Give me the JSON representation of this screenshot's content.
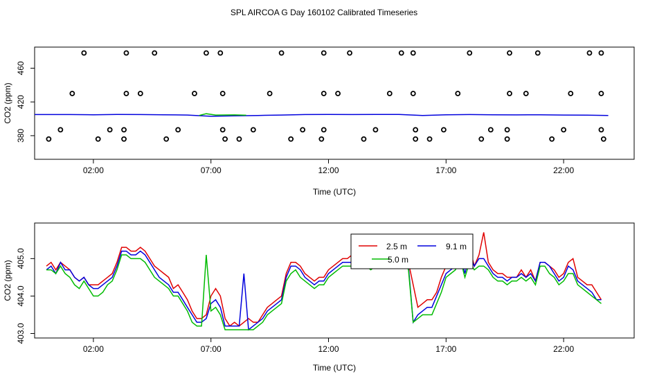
{
  "title": "SPL AIRCOA G  Day 160102  Calibrated Timeseries",
  "colors": {
    "series_2_5": "#e00000",
    "series_9_1": "#0000dd",
    "series_5_0": "#00bb00",
    "markers": "#000000"
  },
  "chart_data": [
    {
      "type": "scatter",
      "xlabel": "Time (UTC)",
      "ylabel": "CO2 (ppm)",
      "xlim": [
        -0.5,
        25.0
      ],
      "ylim": [
        352,
        485
      ],
      "x_ticks": [
        {
          "v": 2,
          "label": "02:00"
        },
        {
          "v": 7,
          "label": "07:00"
        },
        {
          "v": 12,
          "label": "12:00"
        },
        {
          "v": 17,
          "label": "17:00"
        },
        {
          "v": 22,
          "label": "22:00"
        }
      ],
      "y_ticks": [
        {
          "v": 380,
          "label": "380"
        },
        {
          "v": 420,
          "label": "420"
        },
        {
          "v": 460,
          "label": "460"
        }
      ],
      "markers": [
        {
          "x": 1.6,
          "y": 478
        },
        {
          "x": 3.4,
          "y": 478
        },
        {
          "x": 4.6,
          "y": 478
        },
        {
          "x": 6.8,
          "y": 478
        },
        {
          "x": 7.4,
          "y": 478
        },
        {
          "x": 10.0,
          "y": 478
        },
        {
          "x": 11.8,
          "y": 478
        },
        {
          "x": 12.9,
          "y": 478
        },
        {
          "x": 15.1,
          "y": 478
        },
        {
          "x": 15.6,
          "y": 478
        },
        {
          "x": 18.0,
          "y": 478
        },
        {
          "x": 19.7,
          "y": 478
        },
        {
          "x": 20.9,
          "y": 478
        },
        {
          "x": 23.1,
          "y": 478
        },
        {
          "x": 23.6,
          "y": 478
        },
        {
          "x": 1.1,
          "y": 430
        },
        {
          "x": 3.4,
          "y": 430
        },
        {
          "x": 4.0,
          "y": 430
        },
        {
          "x": 6.3,
          "y": 430
        },
        {
          "x": 7.5,
          "y": 430
        },
        {
          "x": 9.5,
          "y": 430
        },
        {
          "x": 11.8,
          "y": 430
        },
        {
          "x": 12.4,
          "y": 430
        },
        {
          "x": 14.6,
          "y": 430
        },
        {
          "x": 15.6,
          "y": 430
        },
        {
          "x": 17.5,
          "y": 430
        },
        {
          "x": 19.7,
          "y": 430
        },
        {
          "x": 20.4,
          "y": 430
        },
        {
          "x": 22.3,
          "y": 430
        },
        {
          "x": 23.6,
          "y": 430
        },
        {
          "x": 0.6,
          "y": 387
        },
        {
          "x": 2.7,
          "y": 387
        },
        {
          "x": 3.3,
          "y": 387
        },
        {
          "x": 5.6,
          "y": 387
        },
        {
          "x": 7.5,
          "y": 387
        },
        {
          "x": 8.8,
          "y": 387
        },
        {
          "x": 10.9,
          "y": 387
        },
        {
          "x": 11.8,
          "y": 387
        },
        {
          "x": 14.0,
          "y": 387
        },
        {
          "x": 15.7,
          "y": 387
        },
        {
          "x": 16.9,
          "y": 387
        },
        {
          "x": 18.9,
          "y": 387
        },
        {
          "x": 19.6,
          "y": 387
        },
        {
          "x": 22.0,
          "y": 387
        },
        {
          "x": 23.6,
          "y": 387
        },
        {
          "x": 0.1,
          "y": 376
        },
        {
          "x": 2.2,
          "y": 376
        },
        {
          "x": 3.3,
          "y": 376
        },
        {
          "x": 5.1,
          "y": 376
        },
        {
          "x": 7.6,
          "y": 376
        },
        {
          "x": 8.2,
          "y": 376
        },
        {
          "x": 10.4,
          "y": 376
        },
        {
          "x": 11.7,
          "y": 376
        },
        {
          "x": 13.5,
          "y": 376
        },
        {
          "x": 15.7,
          "y": 376
        },
        {
          "x": 16.3,
          "y": 376
        },
        {
          "x": 18.5,
          "y": 376
        },
        {
          "x": 19.6,
          "y": 376
        },
        {
          "x": 21.5,
          "y": 376
        },
        {
          "x": 23.7,
          "y": 376
        }
      ],
      "lines": [
        {
          "color": "#0000dd",
          "x": [
            -0.5,
            1,
            2,
            3,
            4,
            5,
            6,
            7,
            8,
            9,
            10,
            11,
            12,
            13,
            14,
            15,
            16,
            17,
            18,
            19,
            20,
            21,
            22,
            23,
            23.9
          ],
          "y": [
            405,
            405,
            404.8,
            405.2,
            405,
            404.8,
            404.5,
            403,
            403.5,
            404,
            404.5,
            405,
            405.2,
            405,
            405.2,
            405.1,
            404,
            404.8,
            405,
            404.8,
            404.6,
            404.8,
            404.5,
            404.3,
            404
          ]
        },
        {
          "color": "#00bb00",
          "x": [
            6.5,
            6.8,
            7.2,
            8,
            8.5
          ],
          "y": [
            404,
            406,
            404.5,
            404.6,
            404.2
          ]
        }
      ]
    },
    {
      "type": "line",
      "xlabel": "Time (UTC)",
      "ylabel": "CO2 (ppm)",
      "xlim": [
        -0.5,
        25.0
      ],
      "ylim": [
        402.88,
        405.95
      ],
      "x_ticks": [
        {
          "v": 2,
          "label": "02:00"
        },
        {
          "v": 7,
          "label": "07:00"
        },
        {
          "v": 12,
          "label": "12:00"
        },
        {
          "v": 17,
          "label": "17:00"
        },
        {
          "v": 22,
          "label": "22:00"
        }
      ],
      "y_ticks": [
        {
          "v": 403,
          "label": "403.0"
        },
        {
          "v": 404,
          "label": "404.0"
        },
        {
          "v": 405,
          "label": "405.0"
        }
      ],
      "legend": {
        "placement": "top-center",
        "entries": [
          {
            "name": "2.5 m",
            "color": "#e00000"
          },
          {
            "name": "9.1 m",
            "color": "#0000dd"
          },
          {
            "name": "5.0 m",
            "color": "#00bb00"
          }
        ]
      },
      "x": [
        0,
        0.2,
        0.4,
        0.6,
        0.8,
        1.0,
        1.2,
        1.4,
        1.6,
        1.8,
        2.0,
        2.2,
        2.4,
        2.6,
        2.8,
        3.0,
        3.2,
        3.4,
        3.6,
        3.8,
        4.0,
        4.2,
        4.4,
        4.6,
        4.8,
        5.0,
        5.2,
        5.4,
        5.6,
        5.8,
        6.0,
        6.2,
        6.4,
        6.6,
        6.8,
        7.0,
        7.2,
        7.4,
        7.6,
        7.8,
        8.0,
        8.2,
        8.4,
        8.6,
        8.8,
        9.0,
        9.2,
        9.4,
        9.6,
        9.8,
        10.0,
        10.2,
        10.4,
        10.6,
        10.8,
        11.0,
        11.2,
        11.4,
        11.6,
        11.8,
        12.0,
        12.2,
        12.4,
        12.6,
        12.8,
        13.0,
        13.2,
        13.4,
        13.6,
        13.8,
        14.0,
        14.2,
        14.4,
        14.6,
        14.8,
        15.0,
        15.2,
        15.4,
        15.6,
        15.8,
        16.0,
        16.2,
        16.4,
        16.6,
        16.8,
        17.0,
        17.2,
        17.4,
        17.6,
        17.8,
        18.0,
        18.2,
        18.4,
        18.6,
        18.8,
        19.0,
        19.2,
        19.4,
        19.6,
        19.8,
        20.0,
        20.2,
        20.4,
        20.6,
        20.8,
        21.0,
        21.2,
        21.4,
        21.6,
        21.8,
        22.0,
        22.2,
        22.4,
        22.6,
        22.8,
        23.0,
        23.2,
        23.4,
        23.6
      ],
      "series": [
        {
          "name": "2.5 m",
          "color": "#e00000",
          "values": [
            404.8,
            404.9,
            404.7,
            404.9,
            404.8,
            404.7,
            404.5,
            404.4,
            404.5,
            404.3,
            404.3,
            404.3,
            404.4,
            404.5,
            404.6,
            404.9,
            405.3,
            405.3,
            405.2,
            405.2,
            405.3,
            405.2,
            405.0,
            404.8,
            404.7,
            404.6,
            404.5,
            404.2,
            404.3,
            404.1,
            403.9,
            403.6,
            403.4,
            403.4,
            403.5,
            404.0,
            404.2,
            404.0,
            403.4,
            403.2,
            403.3,
            403.2,
            403.3,
            403.4,
            403.3,
            403.3,
            403.5,
            403.7,
            403.8,
            403.9,
            404.0,
            404.6,
            404.9,
            404.9,
            404.8,
            404.6,
            404.5,
            404.4,
            404.5,
            404.5,
            404.7,
            404.8,
            404.9,
            405.0,
            405.0,
            405.1,
            405.0,
            405.1,
            405.0,
            404.9,
            405.0,
            405.1,
            405.2,
            405.1,
            405.1,
            405.2,
            405.2,
            404.9,
            404.3,
            403.7,
            403.8,
            403.9,
            403.9,
            404.1,
            404.5,
            404.8,
            405.0,
            405.1,
            405.4,
            404.9,
            405.3,
            404.8,
            405.1,
            405.7,
            404.9,
            404.7,
            404.6,
            404.6,
            404.5,
            404.5,
            404.5,
            404.7,
            404.5,
            404.7,
            404.4,
            404.9,
            404.9,
            404.8,
            404.7,
            404.5,
            404.6,
            404.9,
            405.0,
            404.5,
            404.4,
            404.3,
            404.3,
            404.1,
            403.9
          ]
        },
        {
          "name": "9.1 m",
          "color": "#0000dd",
          "values": [
            404.7,
            404.8,
            404.6,
            404.9,
            404.7,
            404.7,
            404.5,
            404.4,
            404.5,
            404.3,
            404.2,
            404.2,
            404.3,
            404.4,
            404.5,
            404.8,
            405.2,
            405.2,
            405.1,
            405.1,
            405.2,
            405.1,
            404.9,
            404.7,
            404.5,
            404.4,
            404.3,
            404.1,
            404.1,
            403.9,
            403.7,
            403.5,
            403.3,
            403.3,
            403.4,
            403.8,
            403.9,
            403.7,
            403.2,
            403.2,
            403.2,
            403.2,
            404.6,
            403.1,
            403.2,
            403.3,
            403.4,
            403.6,
            403.7,
            403.8,
            403.9,
            404.5,
            404.8,
            404.8,
            404.7,
            404.5,
            404.4,
            404.3,
            404.4,
            404.4,
            404.6,
            404.7,
            404.8,
            404.9,
            404.9,
            404.9,
            404.9,
            405.0,
            404.9,
            404.8,
            404.9,
            405.0,
            405.1,
            405.0,
            405.0,
            405.1,
            405.1,
            404.8,
            403.3,
            403.5,
            403.6,
            403.7,
            403.7,
            404.0,
            404.3,
            404.6,
            404.7,
            404.8,
            405.2,
            404.6,
            405.1,
            404.8,
            405.0,
            405.0,
            404.8,
            404.6,
            404.5,
            404.5,
            404.4,
            404.5,
            404.5,
            404.6,
            404.5,
            404.6,
            404.4,
            404.9,
            404.9,
            404.8,
            404.6,
            404.4,
            404.5,
            404.8,
            404.7,
            404.4,
            404.3,
            404.2,
            404.1,
            403.9,
            403.9
          ]
        },
        {
          "name": "5.0 m",
          "color": "#00bb00",
          "values": [
            404.7,
            404.7,
            404.6,
            404.8,
            404.6,
            404.5,
            404.3,
            404.2,
            404.4,
            404.2,
            404.0,
            404.0,
            404.1,
            404.3,
            404.4,
            404.7,
            405.1,
            405.1,
            405.0,
            405.0,
            405.0,
            404.9,
            404.7,
            404.5,
            404.4,
            404.3,
            404.2,
            404.0,
            404.0,
            403.8,
            403.6,
            403.3,
            403.2,
            403.2,
            405.1,
            403.6,
            403.7,
            403.5,
            403.1,
            403.1,
            403.1,
            403.1,
            403.1,
            403.1,
            403.1,
            403.2,
            403.3,
            403.5,
            403.6,
            403.7,
            403.8,
            404.4,
            404.6,
            404.7,
            404.5,
            404.4,
            404.3,
            404.2,
            404.3,
            404.3,
            404.5,
            404.6,
            404.7,
            404.8,
            404.8,
            404.8,
            404.8,
            404.9,
            404.8,
            404.7,
            404.8,
            404.9,
            405.0,
            404.9,
            404.9,
            405.0,
            405.0,
            404.7,
            403.3,
            403.4,
            403.5,
            403.5,
            403.5,
            403.8,
            404.1,
            404.5,
            404.6,
            404.7,
            405.0,
            404.5,
            404.9,
            404.7,
            404.8,
            404.8,
            404.7,
            404.5,
            404.4,
            404.4,
            404.3,
            404.4,
            404.4,
            404.5,
            404.4,
            404.5,
            404.3,
            404.8,
            404.8,
            404.6,
            404.5,
            404.3,
            404.4,
            404.6,
            404.6,
            404.3,
            404.2,
            404.1,
            404.0,
            403.9,
            403.8
          ]
        }
      ]
    }
  ]
}
